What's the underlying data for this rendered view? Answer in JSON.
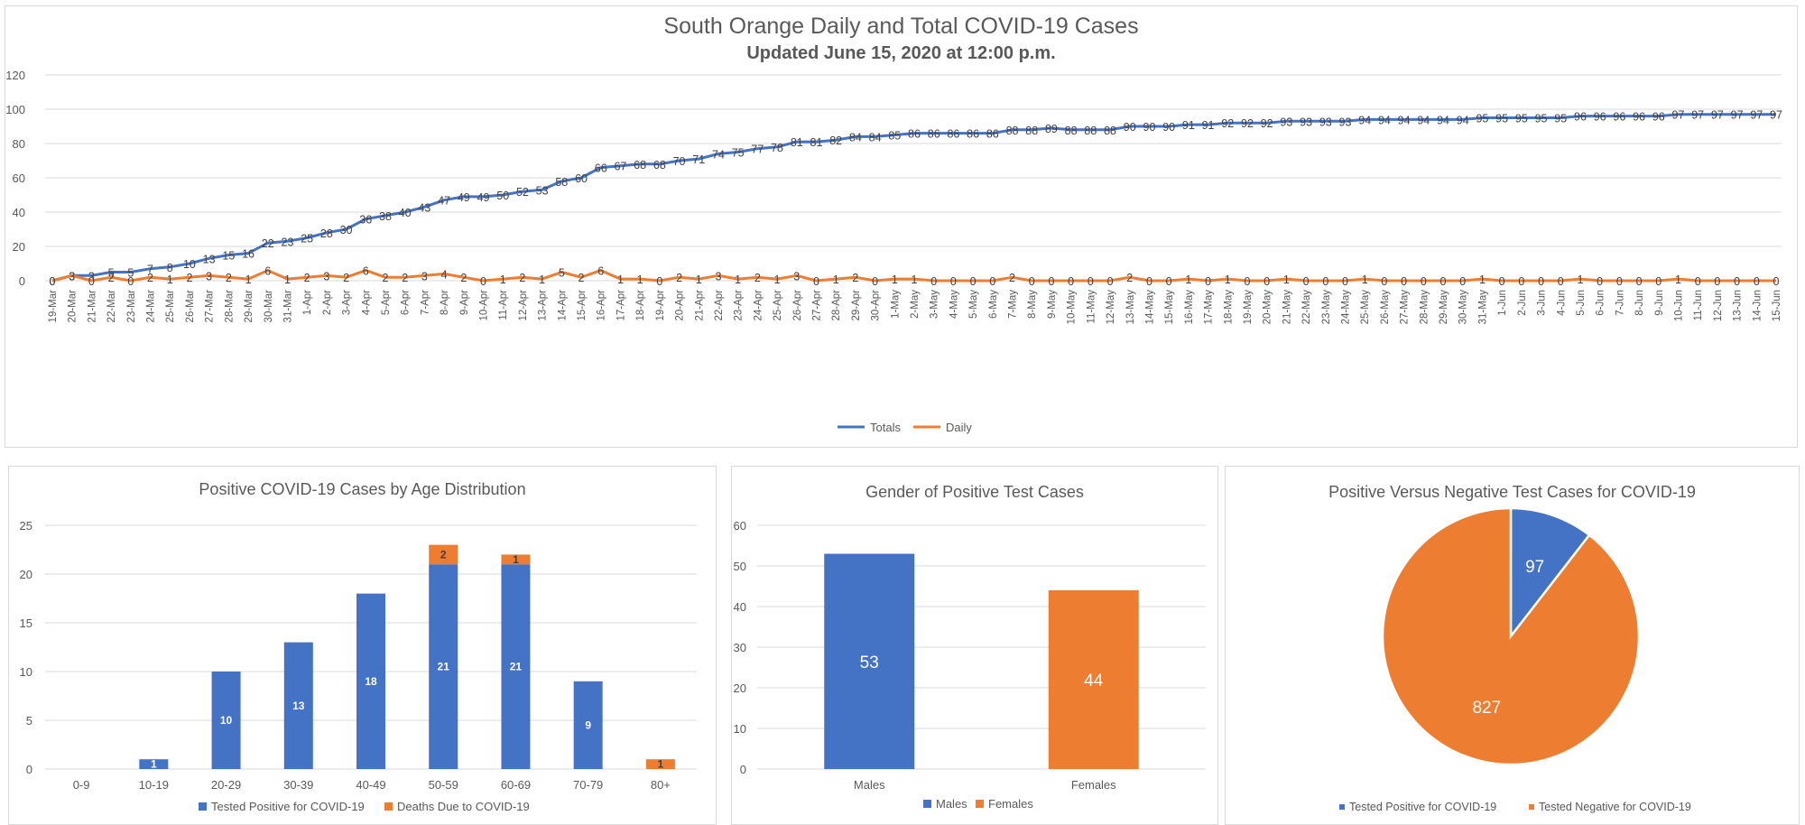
{
  "chart_data": [
    {
      "type": "line",
      "title": "South Orange Daily and Total COVID-19 Cases",
      "subtitle": "Updated June 15, 2020 at 12:00 p.m.",
      "ylim": [
        0,
        120
      ],
      "yticks": [
        0,
        20,
        40,
        60,
        80,
        100,
        120
      ],
      "grid": true,
      "legend": "bottom",
      "categories": [
        "19-Mar",
        "20-Mar",
        "21-Mar",
        "22-Mar",
        "23-Mar",
        "24-Mar",
        "25-Mar",
        "26-Mar",
        "27-Mar",
        "28-Mar",
        "29-Mar",
        "30-Mar",
        "31-Mar",
        "1-Apr",
        "2-Apr",
        "3-Apr",
        "4-Apr",
        "5-Apr",
        "6-Apr",
        "7-Apr",
        "8-Apr",
        "9-Apr",
        "10-Apr",
        "11-Apr",
        "12-Apr",
        "13-Apr",
        "14-Apr",
        "15-Apr",
        "16-Apr",
        "17-Apr",
        "18-Apr",
        "19-Apr",
        "20-Apr",
        "21-Apr",
        "22-Apr",
        "23-Apr",
        "24-Apr",
        "25-Apr",
        "26-Apr",
        "27-Apr",
        "28-Apr",
        "29-Apr",
        "30-Apr",
        "1-May",
        "2-May",
        "3-May",
        "4-May",
        "5-May",
        "6-May",
        "7-May",
        "8-May",
        "9-May",
        "10-May",
        "11-May",
        "12-May",
        "13-May",
        "14-May",
        "15-May",
        "16-May",
        "17-May",
        "18-May",
        "19-May",
        "20-May",
        "21-May",
        "22-May",
        "23-May",
        "24-May",
        "25-May",
        "26-May",
        "27-May",
        "28-May",
        "29-May",
        "30-May",
        "31-May",
        "1-Jun",
        "2-Jun",
        "3-Jun",
        "4-Jun",
        "5-Jun",
        "6-Jun",
        "7-Jun",
        "8-Jun",
        "9-Jun",
        "10-Jun",
        "11-Jun",
        "12-Jun",
        "13-Jun",
        "14-Jun",
        "15-Jun"
      ],
      "series": [
        {
          "name": "Totals",
          "color": "#4472c4",
          "values": [
            0,
            3,
            3,
            5,
            5,
            7,
            8,
            10,
            13,
            15,
            16,
            22,
            23,
            25,
            28,
            30,
            36,
            38,
            40,
            43,
            47,
            49,
            49,
            50,
            52,
            53,
            58,
            60,
            66,
            67,
            68,
            68,
            70,
            71,
            74,
            75,
            77,
            78,
            81,
            81,
            82,
            84,
            84,
            85,
            86,
            86,
            86,
            86,
            86,
            88,
            88,
            89,
            88,
            88,
            88,
            90,
            90,
            90,
            91,
            91,
            92,
            92,
            92,
            93,
            93,
            93,
            93,
            94,
            94,
            94,
            94,
            94,
            94,
            95,
            95,
            95,
            95,
            95,
            96,
            96,
            96,
            96,
            96,
            97,
            97,
            97,
            97,
            97,
            97
          ]
        },
        {
          "name": "Daily",
          "color": "#ed7d31",
          "values": [
            0,
            3,
            0,
            2,
            0,
            2,
            1,
            2,
            3,
            2,
            1,
            6,
            1,
            2,
            3,
            2,
            6,
            2,
            2,
            3,
            4,
            2,
            0,
            1,
            2,
            1,
            5,
            2,
            6,
            1,
            1,
            0,
            2,
            1,
            3,
            1,
            2,
            1,
            3,
            0,
            1,
            2,
            0,
            1,
            1,
            0,
            0,
            0,
            0,
            2,
            0,
            0,
            0,
            0,
            0,
            2,
            0,
            0,
            1,
            0,
            1,
            0,
            0,
            1,
            0,
            0,
            0,
            1,
            0,
            0,
            0,
            0,
            0,
            1,
            0,
            0,
            0,
            0,
            1,
            0,
            0,
            0,
            0,
            1,
            0,
            0,
            0,
            0,
            0
          ]
        }
      ]
    },
    {
      "type": "bar",
      "stacked": true,
      "title": "Positive COVID-19 Cases by Age Distribution",
      "ylim": [
        0,
        25
      ],
      "yticks": [
        0,
        5,
        10,
        15,
        20,
        25
      ],
      "grid": true,
      "legend": "bottom",
      "categories": [
        "0-9",
        "10-19",
        "20-29",
        "30-39",
        "40-49",
        "50-59",
        "60-69",
        "70-79",
        "80+"
      ],
      "series": [
        {
          "name": "Tested Positive for COVID-19",
          "color": "#4472c4",
          "values": [
            0,
            1,
            10,
            13,
            18,
            21,
            21,
            9,
            0
          ]
        },
        {
          "name": "Deaths Due to COVID-19",
          "color": "#ed7d31",
          "values": [
            0,
            0,
            0,
            0,
            0,
            2,
            1,
            0,
            1
          ]
        }
      ]
    },
    {
      "type": "bar",
      "title": "Gender of Positive Test Cases",
      "ylim": [
        0,
        60
      ],
      "yticks": [
        0,
        10,
        20,
        30,
        40,
        50,
        60
      ],
      "grid": true,
      "legend": "bottom",
      "categories": [
        "Males",
        "Females"
      ],
      "values": [
        53,
        44
      ],
      "colors": [
        "#4472c4",
        "#ed7d31"
      ]
    },
    {
      "type": "pie",
      "title": "Positive Versus Negative Test Cases for COVID-19",
      "legend": "bottom",
      "labels": [
        "Tested Positive for COVID-19",
        "Tested Negative for COVID-19"
      ],
      "values": [
        97,
        827
      ],
      "colors": [
        "#4472c4",
        "#ed7d31"
      ]
    }
  ]
}
